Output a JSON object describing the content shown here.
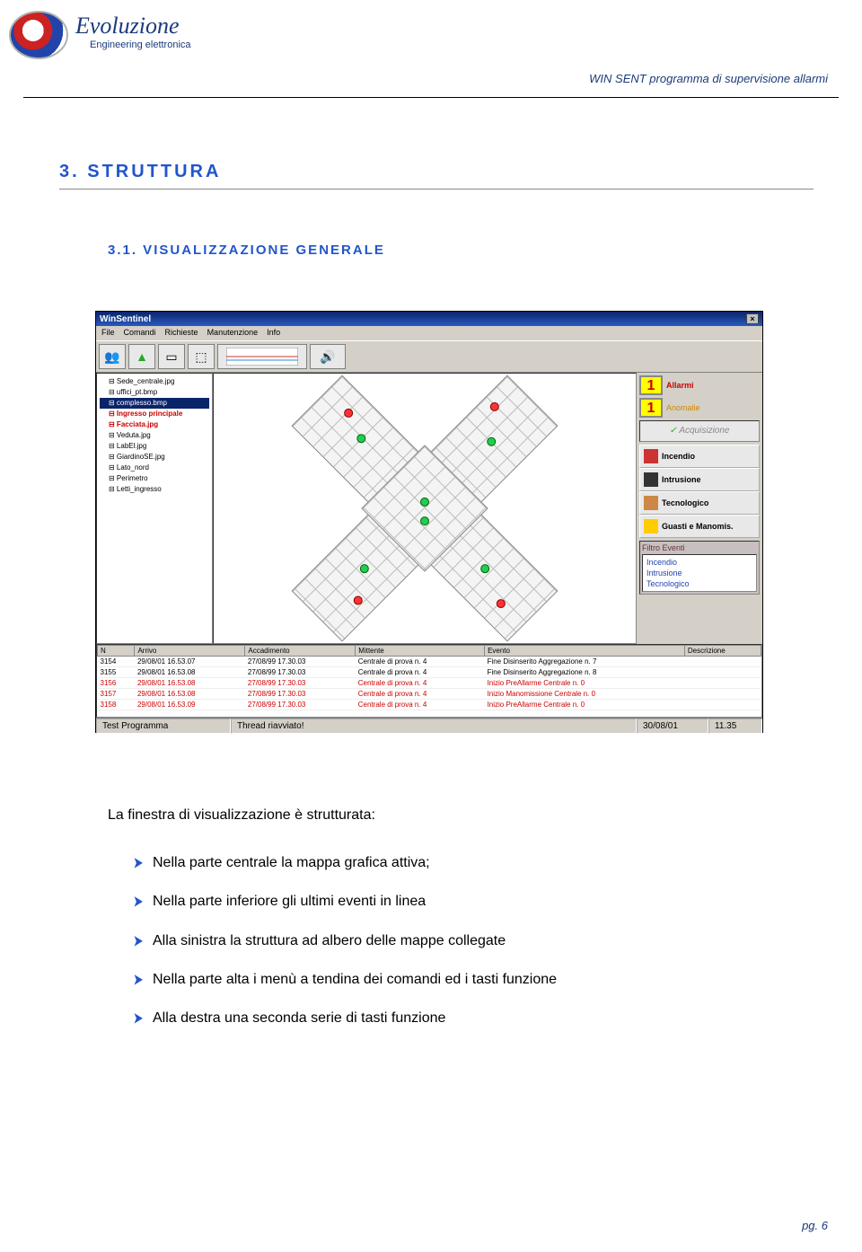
{
  "brand": "Evoluzione",
  "brand_sub": "Engineering elettronica",
  "header_right": "WIN SENT programma di supervisione allarmi",
  "section_title": "3.  STRUTTURA",
  "subsection_title": "3.1.  VISUALIZZAZIONE GENERALE",
  "body_intro": "La finestra di visualizzazione è strutturata:",
  "bullets": [
    "Nella parte centrale la mappa grafica attiva;",
    "Nella parte inferiore gli ultimi eventi in linea",
    "Alla sinistra la struttura ad albero delle mappe collegate",
    "Nella parte alta i menù a tendina dei comandi ed i tasti funzione",
    "Alla destra una seconda serie di tasti funzione"
  ],
  "footer": "pg. 6",
  "app": {
    "title": "WinSentinel",
    "menus": [
      "File",
      "Comandi",
      "Richieste",
      "Manutenzione",
      "Info"
    ],
    "tree": [
      {
        "label": "Sede_centrale.jpg",
        "cls": ""
      },
      {
        "label": "uffici_pt.bmp",
        "cls": ""
      },
      {
        "label": "complesso.bmp",
        "cls": "sel"
      },
      {
        "label": "Ingresso principale",
        "cls": "red"
      },
      {
        "label": "Facciata.jpg",
        "cls": "red"
      },
      {
        "label": "Veduta.jpg",
        "cls": ""
      },
      {
        "label": "LabEl.jpg",
        "cls": ""
      },
      {
        "label": "GiardinoSE.jpg",
        "cls": ""
      },
      {
        "label": "Lato_nord",
        "cls": ""
      },
      {
        "label": "Perimetro",
        "cls": ""
      },
      {
        "label": "Letti_ingresso",
        "cls": ""
      }
    ],
    "counters": [
      {
        "val": "1",
        "label": "Allarmi",
        "cls": "r"
      },
      {
        "val": "1",
        "label": "Anomalie",
        "cls": "o"
      }
    ],
    "acq_label": "Acquisizione",
    "side_buttons": [
      {
        "label": "Incendio",
        "color": "#cc3333"
      },
      {
        "label": "Intrusione",
        "color": "#333333"
      },
      {
        "label": "Tecnologico",
        "color": "#cc8844"
      },
      {
        "label": "Guasti e Manomis.",
        "color": "#ffcc00"
      }
    ],
    "filtro_title": "Filtro Eventi",
    "filtro_items": [
      "Incendio",
      "Intrusione",
      "Tecnologico"
    ],
    "event_columns": [
      "N",
      "Arrivo",
      "Accadimento",
      "Mittente",
      "Evento",
      "Descrizione"
    ],
    "event_rows": [
      {
        "cls": "",
        "c": [
          "3154",
          "29/08/01 16.53.07",
          "27/08/99 17.30.03",
          "Centrale di prova n. 4",
          "Fine Disinserito Aggregazione n. 7",
          ""
        ]
      },
      {
        "cls": "",
        "c": [
          "3155",
          "29/08/01 16.53.08",
          "27/08/99 17.30.03",
          "Centrale di prova n. 4",
          "Fine Disinserito Aggregazione n. 8",
          ""
        ]
      },
      {
        "cls": "red",
        "c": [
          "3156",
          "29/08/01 16.53.08",
          "27/08/99 17.30.03",
          "Centrale di prova n. 4",
          "Inizio PreAllarme Centrale n. 0",
          ""
        ]
      },
      {
        "cls": "red",
        "c": [
          "3157",
          "29/08/01 16.53.08",
          "27/08/99 17.30.03",
          "Centrale di prova n. 4",
          "Inizio Manomissione Centrale n. 0",
          ""
        ]
      },
      {
        "cls": "red",
        "c": [
          "3158",
          "29/08/01 16.53.09",
          "27/08/99 17.30.03",
          "Centrale di prova n. 4",
          "Inizio PreAllarme Centrale n. 0",
          ""
        ]
      }
    ],
    "status": {
      "left": "Test Programma",
      "mid": "Thread riavviato!",
      "date": "30/08/01",
      "time": "11.35"
    },
    "colors": {
      "titlebar": "#0a246a",
      "highlight": "#ffff00",
      "red": "#cc0000",
      "blue": "#2244aa",
      "panel_bg": "#d4d0c8"
    }
  }
}
